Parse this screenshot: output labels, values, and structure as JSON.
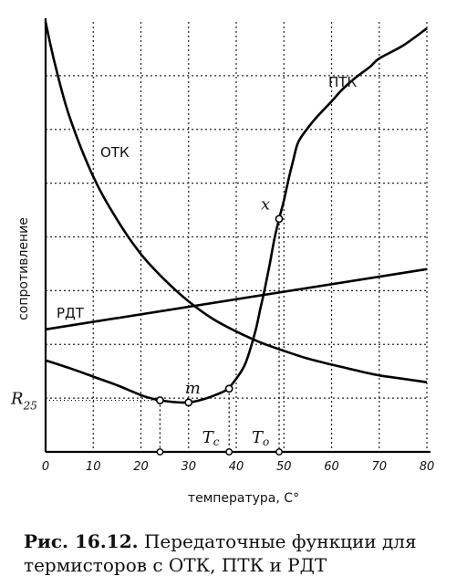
{
  "chart_data": {
    "type": "line",
    "xlabel": "температура, C°",
    "ylabel": "сопротивление",
    "x_ticks": [
      "0",
      "10",
      "20",
      "30",
      "40",
      "50",
      "60",
      "70",
      "80"
    ],
    "xlim": [
      0,
      80
    ],
    "grid": true,
    "y_tick_label": "R25",
    "series": [
      {
        "name": "ОТК",
        "x": [
          0,
          2,
          5,
          10,
          15,
          20,
          25,
          30,
          35,
          40,
          45,
          50,
          55,
          60,
          65,
          70,
          75,
          80
        ],
        "y": [
          100,
          90,
          78,
          64,
          54,
          46,
          40,
          35,
          31,
          28,
          25.5,
          23.5,
          21.7,
          20.3,
          19,
          17.8,
          17,
          16.2
        ]
      },
      {
        "name": "ПТК",
        "x": [
          0,
          5,
          10,
          15,
          20,
          22,
          24,
          27,
          30,
          33,
          36,
          38,
          40,
          42,
          44,
          45,
          46,
          47,
          48,
          49,
          50,
          51,
          52,
          53,
          55,
          57,
          60,
          62,
          65,
          68,
          70,
          75,
          80
        ],
        "y": [
          21.3,
          19.5,
          17.5,
          15.5,
          13.2,
          12.5,
          12,
          11.6,
          11.5,
          12.2,
          13.4,
          14.5,
          17,
          20.8,
          28,
          33,
          38,
          43.5,
          49.5,
          54.2,
          58.5,
          63.5,
          68,
          72,
          75.3,
          78,
          81.5,
          84,
          87,
          89.5,
          91.5,
          94.5,
          98.5
        ]
      },
      {
        "name": "РДТ",
        "x": [
          0,
          80
        ],
        "y": [
          28.5,
          42.5
        ]
      }
    ],
    "annotations": [
      {
        "text": "R25",
        "y": 12
      },
      {
        "text": "m",
        "x": 30,
        "y": 11.5
      },
      {
        "text": "x",
        "x": 49,
        "y": 54.2
      },
      {
        "text": "Tc",
        "x": 39
      },
      {
        "text": "To",
        "x": 49
      }
    ],
    "marked_points": [
      {
        "x": 24,
        "y": 12
      },
      {
        "x": 30,
        "y": 11.5
      },
      {
        "x": 38.5,
        "y": 14.7
      },
      {
        "x": 49,
        "y": 54.2
      }
    ]
  },
  "caption": {
    "label": "Рис. 16.12.",
    "text": "Передаточные функции для термисторов с ОТК, ПТК и РДТ"
  }
}
